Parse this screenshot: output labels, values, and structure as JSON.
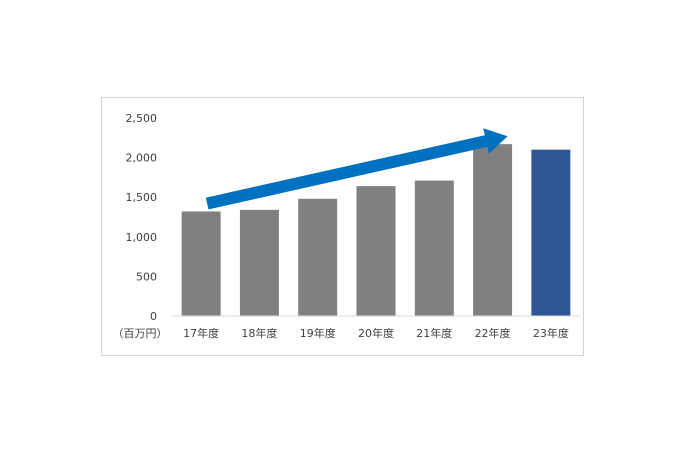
{
  "chart_data": {
    "type": "bar",
    "unit_label": "（百万円）",
    "categories": [
      "17年度",
      "18年度",
      "19年度",
      "20年度",
      "21年度",
      "22年度",
      "23年度"
    ],
    "values": [
      1320,
      1340,
      1480,
      1640,
      1710,
      2170,
      2100
    ],
    "ylim": [
      0,
      2500
    ],
    "yticks": [
      0,
      500,
      1000,
      1500,
      2000,
      2500
    ],
    "ytick_labels": [
      "0",
      "500",
      "1,000",
      "1,500",
      "2,000",
      "2,500"
    ],
    "grid": false,
    "legend": "none",
    "colors": {
      "bar": "#808080",
      "highlight_bar": "#2f5597",
      "arrow": "#0070c0",
      "axis": "#d9d9d9"
    },
    "highlight_index": 6,
    "annotation": {
      "type": "trend-arrow",
      "from_category": "17年度",
      "to_category": "22年度",
      "from_value": 1420,
      "to_value": 2270
    }
  }
}
